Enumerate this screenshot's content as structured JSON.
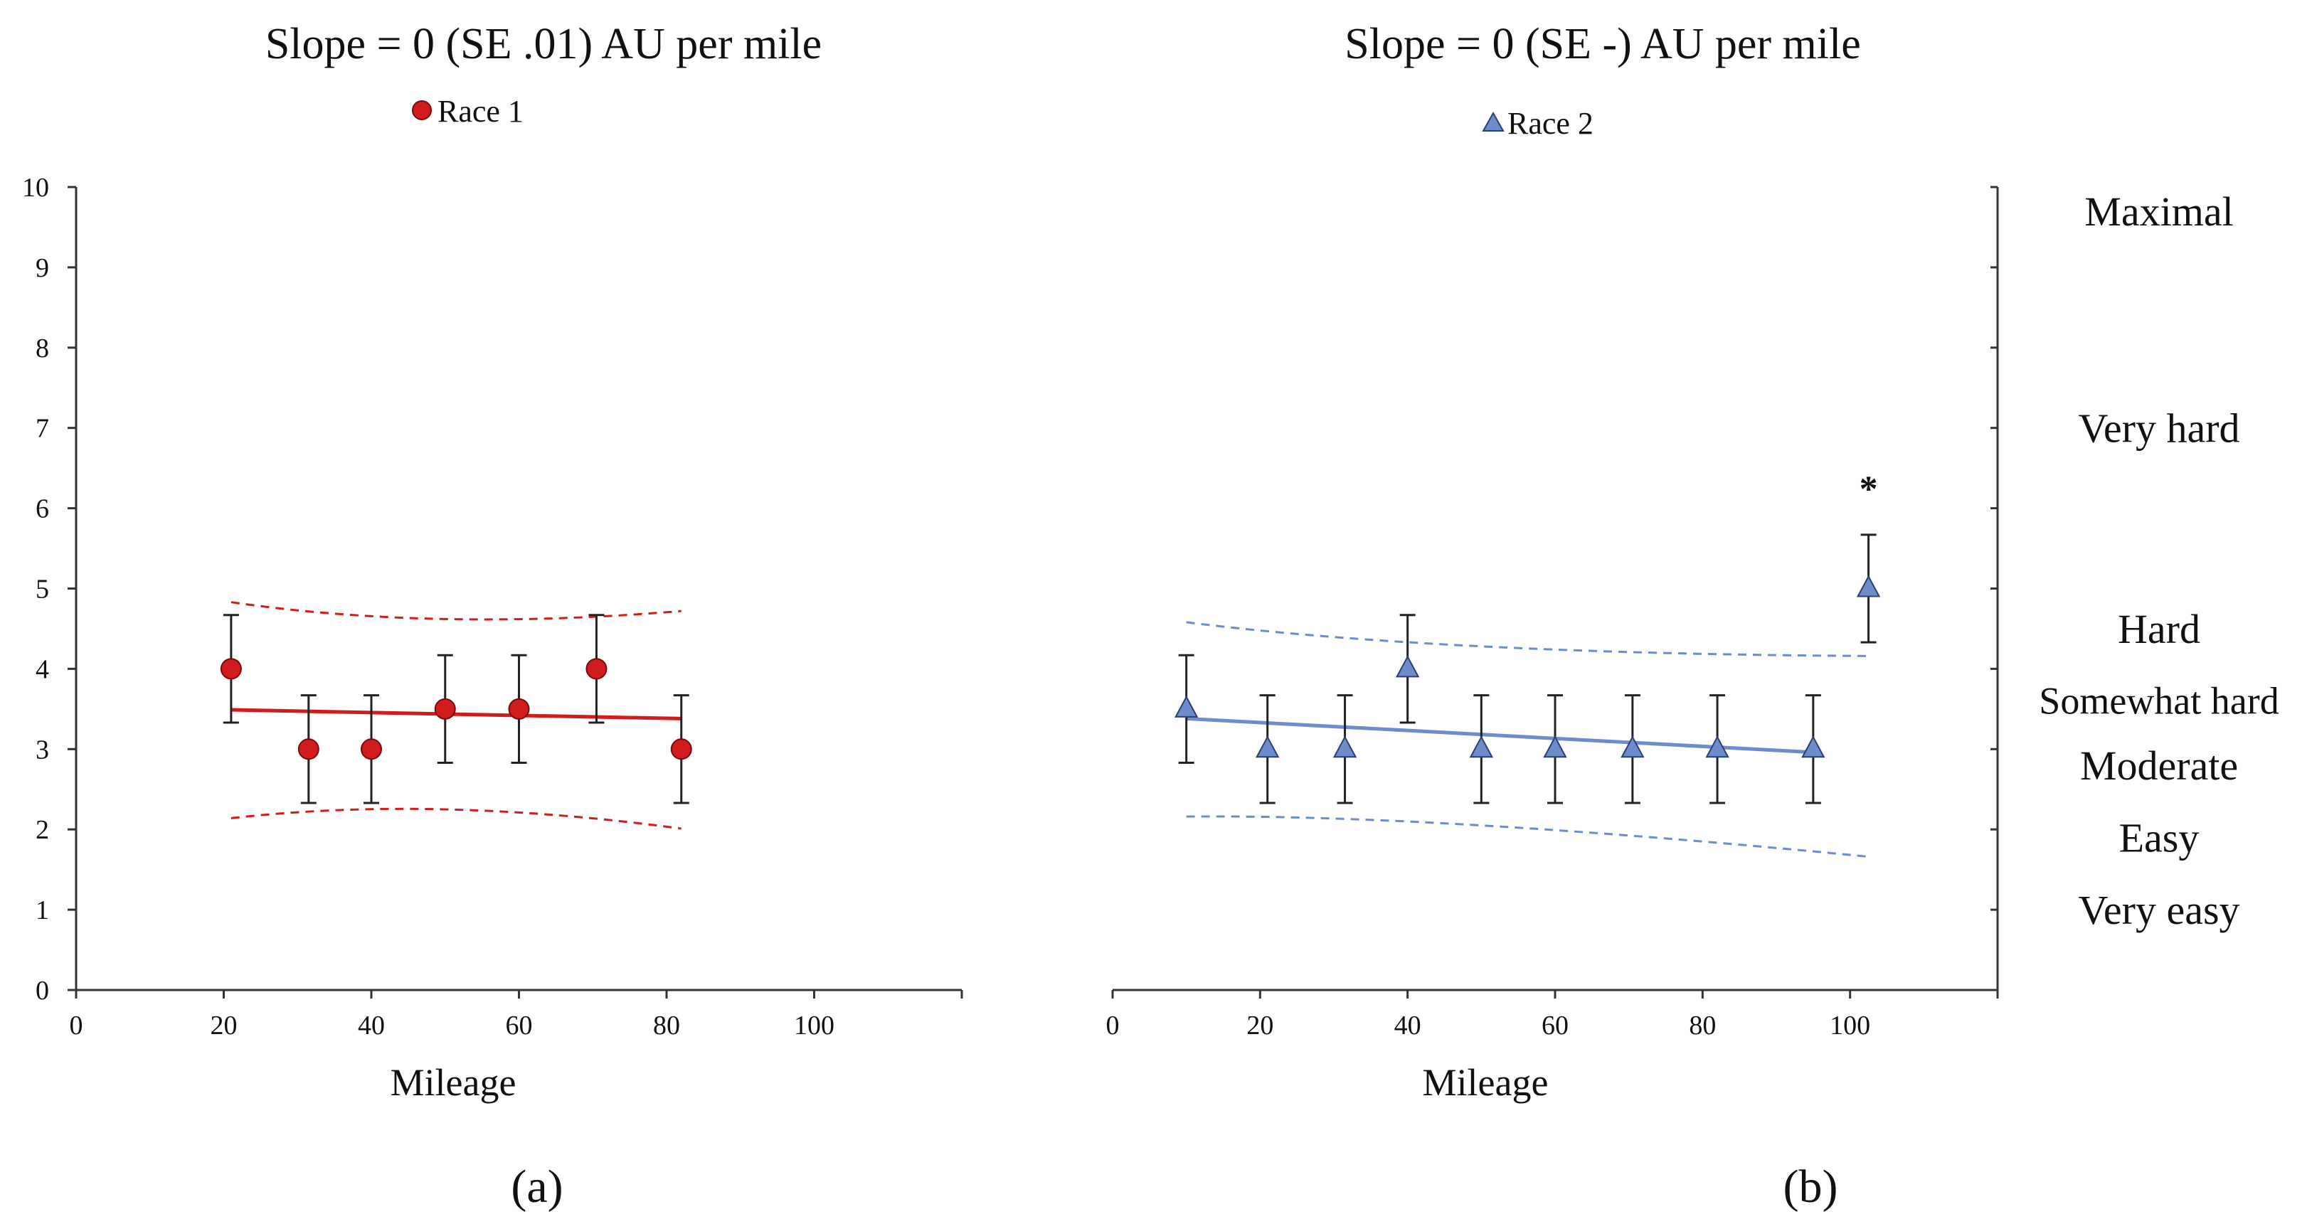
{
  "chart_data": [
    {
      "type": "scatter",
      "panel_label": "(a)",
      "title": "Slope = 0 (SE .01) AU per mile",
      "xlabel": "Mileage",
      "ylabel": "",
      "xlim": [
        0,
        120
      ],
      "ylim": [
        0,
        10
      ],
      "x_ticks": [
        0,
        20,
        40,
        60,
        80,
        100
      ],
      "y_ticks": [
        0,
        1,
        2,
        3,
        4,
        5,
        6,
        7,
        8,
        9,
        10
      ],
      "legend": {
        "label": "Race 1",
        "marker": "circle",
        "placement": "top-center"
      },
      "color": "#d01c1c",
      "edge_color": "#7a0a0a",
      "series": [
        {
          "name": "Race 1",
          "x": [
            21,
            31.5,
            40,
            50,
            60,
            70.5,
            82
          ],
          "y": [
            4,
            3,
            3,
            3.5,
            3.5,
            4,
            3
          ],
          "error": [
            0.67,
            0.67,
            0.67,
            0.67,
            0.67,
            0.67,
            0.67
          ]
        }
      ],
      "fit_line": {
        "x": [
          21,
          82
        ],
        "y": [
          3.49,
          3.38
        ]
      },
      "ci_upper": {
        "x": [
          21,
          50,
          82
        ],
        "y": [
          4.83,
          4.62,
          4.72
        ]
      },
      "ci_lower": {
        "x": [
          21,
          50,
          82
        ],
        "y": [
          2.14,
          2.25,
          2.01
        ]
      },
      "annotations": []
    },
    {
      "type": "scatter",
      "panel_label": "(b)",
      "title": "Slope = 0 (SE -) AU per mile",
      "xlabel": "Mileage",
      "ylabel": "",
      "xlim": [
        0,
        120
      ],
      "ylim": [
        0,
        10
      ],
      "x_ticks": [
        0,
        20,
        40,
        60,
        80,
        100
      ],
      "y_ticks": [
        0,
        1,
        2,
        3,
        4,
        5,
        6,
        7,
        8,
        9,
        10
      ],
      "legend": {
        "label": "Race 2",
        "marker": "triangle",
        "placement": "top-center"
      },
      "color": "#6c8ccc",
      "edge_color": "#2c3f70",
      "series": [
        {
          "name": "Race 2",
          "x": [
            10,
            21,
            31.5,
            40,
            50,
            60,
            70.5,
            82,
            95,
            102.5
          ],
          "y": [
            3.5,
            3,
            3,
            4,
            3,
            3,
            3,
            3,
            3,
            5
          ],
          "error": [
            0.67,
            0.67,
            0.67,
            0.67,
            0.67,
            0.67,
            0.67,
            0.67,
            0.67,
            0.67
          ]
        }
      ],
      "fit_line": {
        "x": [
          10,
          95
        ],
        "y": [
          3.38,
          2.96
        ]
      },
      "ci_upper": {
        "x": [
          10,
          50,
          102.5
        ],
        "y": [
          4.58,
          4.28,
          4.16
        ]
      },
      "ci_lower": {
        "x": [
          10,
          50,
          102.5
        ],
        "y": [
          2.16,
          2.05,
          1.66
        ]
      },
      "annotations": [
        {
          "x": 102.5,
          "y": 6.3,
          "text": "*"
        }
      ],
      "right_axis_labels": [
        {
          "y": 9.7,
          "text": "Maximal"
        },
        {
          "y": 7.0,
          "text": "Very hard"
        },
        {
          "y": 4.5,
          "text": "Hard"
        },
        {
          "y": 3.6,
          "text": "Somewhat hard"
        },
        {
          "y": 2.8,
          "text": "Moderate"
        },
        {
          "y": 1.9,
          "text": "Easy"
        },
        {
          "y": 1.0,
          "text": "Very easy"
        }
      ]
    }
  ]
}
